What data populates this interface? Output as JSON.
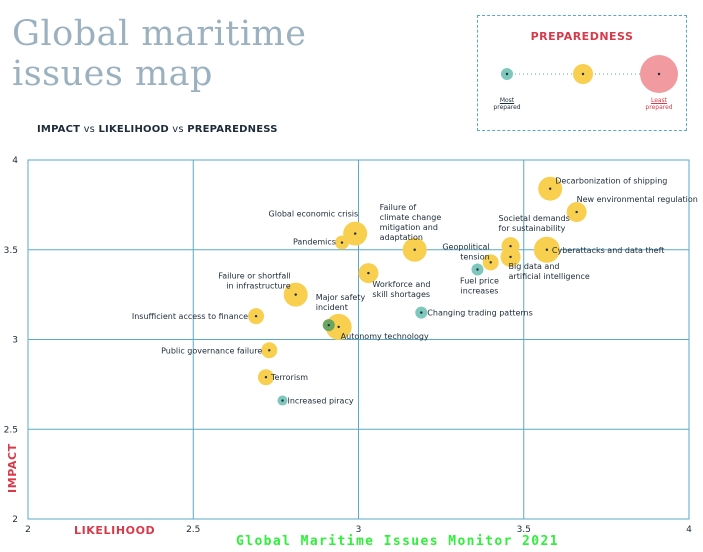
{
  "title": "Global maritime issues map",
  "subtitle": {
    "part1": "IMPACT",
    "vs1": " vs ",
    "part2": "LIKELIHOOD",
    "vs2": " vs ",
    "part3": "PREPAREDNESS"
  },
  "legend": {
    "title": "PREPAREDNESS",
    "most_label_1": "Most",
    "most_label_2": "prepared",
    "least_label_1": "Least",
    "least_label_2": "prepared",
    "colors": {
      "most": "#7ec7bd",
      "mid": "#f8cf4e",
      "least": "#f19aa0"
    }
  },
  "footer": "Global Maritime Issues Monitor 2021",
  "chart_data": {
    "type": "scatter",
    "xlabel": "LIKELIHOOD",
    "ylabel": "IMPACT",
    "xlim": [
      2,
      4
    ],
    "ylim": [
      2,
      4
    ],
    "xticks": [
      "2",
      "2.5",
      "3",
      "3.5",
      "4"
    ],
    "yticks": [
      "2",
      "2.5",
      "3",
      "3.5",
      "4"
    ],
    "grid": true,
    "size_encoding": "preparedness (larger = less prepared)",
    "points": [
      {
        "label": "Decarbonization of shipping",
        "x": 3.58,
        "y": 3.84,
        "size": 12,
        "color": "yellow"
      },
      {
        "label": "New environmental regulation",
        "x": 3.66,
        "y": 3.71,
        "size": 10,
        "color": "yellow"
      },
      {
        "label": "Societal demands for sustainability",
        "x": 3.46,
        "y": 3.52,
        "size": 9,
        "color": "yellow"
      },
      {
        "label": "Cyberattacks and data theft",
        "x": 3.57,
        "y": 3.5,
        "size": 13,
        "color": "yellow"
      },
      {
        "label": "Big data and artificial intelligence",
        "x": 3.46,
        "y": 3.46,
        "size": 10,
        "color": "yellow"
      },
      {
        "label": "Geopolitical tension",
        "x": 3.4,
        "y": 3.43,
        "size": 8,
        "color": "yellow"
      },
      {
        "label": "Fuel price increases",
        "x": 3.36,
        "y": 3.39,
        "size": 6,
        "color": "teal"
      },
      {
        "label": "Failure of climate change mitigation and adaptation",
        "x": 3.17,
        "y": 3.5,
        "size": 12,
        "color": "yellow"
      },
      {
        "label": "Global economic crisis",
        "x": 2.99,
        "y": 3.59,
        "size": 12,
        "color": "yellow"
      },
      {
        "label": "Pandemics",
        "x": 2.95,
        "y": 3.54,
        "size": 7,
        "color": "yellow"
      },
      {
        "label": "Workforce and skill shortages",
        "x": 3.03,
        "y": 3.37,
        "size": 10,
        "color": "yellow"
      },
      {
        "label": "Failure or shortfall in infrastructure",
        "x": 2.81,
        "y": 3.25,
        "size": 12,
        "color": "yellow"
      },
      {
        "label": "Insufficient access to finance",
        "x": 2.69,
        "y": 3.13,
        "size": 8,
        "color": "yellow"
      },
      {
        "label": "Changing trading patterns",
        "x": 3.19,
        "y": 3.15,
        "size": 6,
        "color": "teal"
      },
      {
        "label": "Autonomy technology",
        "x": 2.94,
        "y": 3.07,
        "size": 13,
        "color": "yellow"
      },
      {
        "label": "Major safety incident",
        "x": 2.91,
        "y": 3.08,
        "size": 6,
        "color": "green"
      },
      {
        "label": "Public governance failure",
        "x": 2.73,
        "y": 2.94,
        "size": 8,
        "color": "yellow"
      },
      {
        "label": "Terrorism",
        "x": 2.72,
        "y": 2.79,
        "size": 8,
        "color": "yellow"
      },
      {
        "label": "Increased piracy",
        "x": 2.77,
        "y": 2.66,
        "size": 5,
        "color": "teal"
      }
    ]
  }
}
